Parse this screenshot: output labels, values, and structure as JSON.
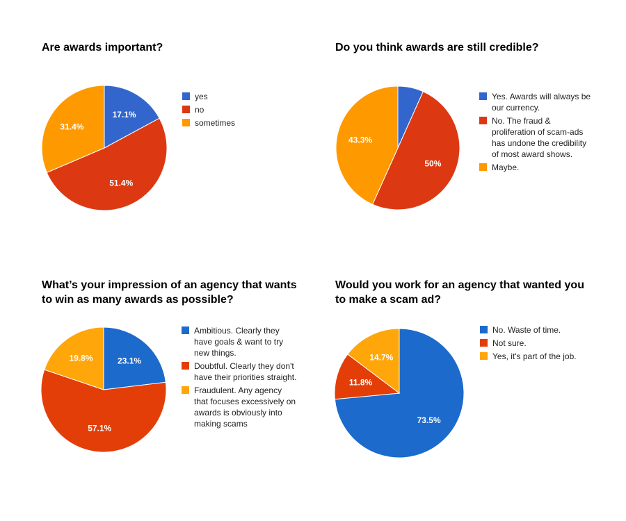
{
  "chart_data": [
    {
      "type": "pie",
      "title": "Are awards important?",
      "categories": [
        "yes",
        "no",
        "sometimes"
      ],
      "values": [
        17.1,
        51.4,
        31.4
      ],
      "labels": [
        "17.1%",
        "51.4%",
        "31.4%"
      ],
      "colors": [
        "#3366cc",
        "#dc3912",
        "#ff9900"
      ],
      "legend_position": "right"
    },
    {
      "type": "pie",
      "title": "Do you think awards are still credible?",
      "categories": [
        "Yes. Awards will always be our currency.",
        "No. The fraud & proliferation of scam-ads has undone the credibility of most award shows.",
        "Maybe."
      ],
      "values": [
        6.7,
        50,
        43.3
      ],
      "labels": [
        "",
        "50%",
        "43.3%"
      ],
      "colors": [
        "#3366cc",
        "#dc3912",
        "#ff9900"
      ],
      "legend_position": "right"
    },
    {
      "type": "pie",
      "title": "What’s your impression of an agency that wants to win as many awards as possible?",
      "categories": [
        "Ambitious. Clearly they have goals & want to try new things.",
        "Doubtful. Clearly they don't have their priorities straight.",
        "Fraudulent. Any agency that focuses excessively on awards is obviously into making scams"
      ],
      "values": [
        23.1,
        57.1,
        19.8
      ],
      "labels": [
        "23.1%",
        "57.1%",
        "19.8%"
      ],
      "colors": [
        "#1c6acb",
        "#e33e07",
        "#ffa60a"
      ],
      "legend_position": "right"
    },
    {
      "type": "pie",
      "title": "Would you work for an agency that wanted you to make a scam ad?",
      "categories": [
        "No. Waste of time.",
        "Not sure.",
        "Yes, it's part of the job."
      ],
      "values": [
        73.5,
        11.8,
        14.7
      ],
      "labels": [
        "73.5%",
        "11.8%",
        "14.7%"
      ],
      "colors": [
        "#1c6acb",
        "#e33e07",
        "#ffa60a"
      ],
      "legend_position": "right"
    }
  ]
}
